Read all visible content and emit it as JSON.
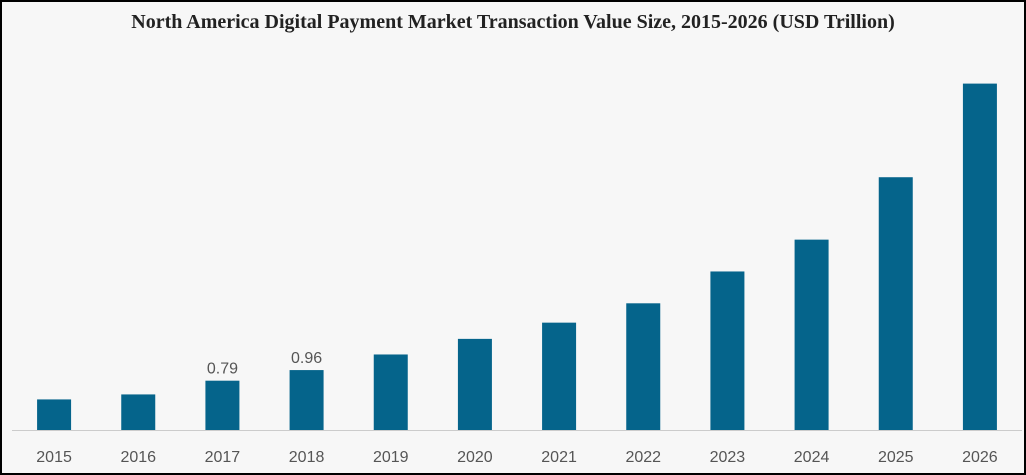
{
  "chart_data": {
    "type": "bar",
    "title": "North America Digital Payment Market Transaction Value Size, 2015-2026 (USD Trillion)",
    "xlabel": "",
    "ylabel": "",
    "categories": [
      "2015",
      "2016",
      "2017",
      "2018",
      "2019",
      "2020",
      "2021",
      "2022",
      "2023",
      "2024",
      "2025",
      "2026"
    ],
    "values": [
      0.49,
      0.57,
      0.79,
      0.96,
      1.21,
      1.46,
      1.72,
      2.03,
      2.54,
      3.05,
      4.05,
      5.55
    ],
    "data_labels": [
      "",
      "",
      "0.79",
      "0.96",
      "",
      "",
      "",
      "",
      "",
      "",
      "",
      ""
    ],
    "ylim": [
      0,
      5.8
    ],
    "grid": false,
    "legend": "none",
    "bar_color": "#05648b"
  }
}
